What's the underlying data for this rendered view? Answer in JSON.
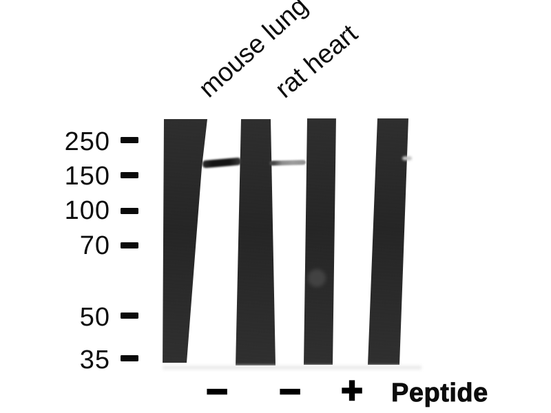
{
  "samples": {
    "labels": [
      "mouse lung",
      "rat heart"
    ]
  },
  "markers": {
    "items": [
      {
        "label": "250"
      },
      {
        "label": "150"
      },
      {
        "label": "100"
      },
      {
        "label": "70"
      },
      {
        "label": "50"
      },
      {
        "label": "35"
      }
    ]
  },
  "treatment": {
    "symbols": [
      {
        "name": "minus",
        "char": "−"
      },
      {
        "name": "minus",
        "char": "−"
      },
      {
        "name": "plus",
        "char": "+"
      }
    ],
    "label": "Peptide"
  },
  "colors": {
    "background": "#ffffff",
    "text": "#0d0d0d",
    "lane_dark": "#232323",
    "band_dark": "#141414",
    "band_gray": "#8c8c8c"
  }
}
